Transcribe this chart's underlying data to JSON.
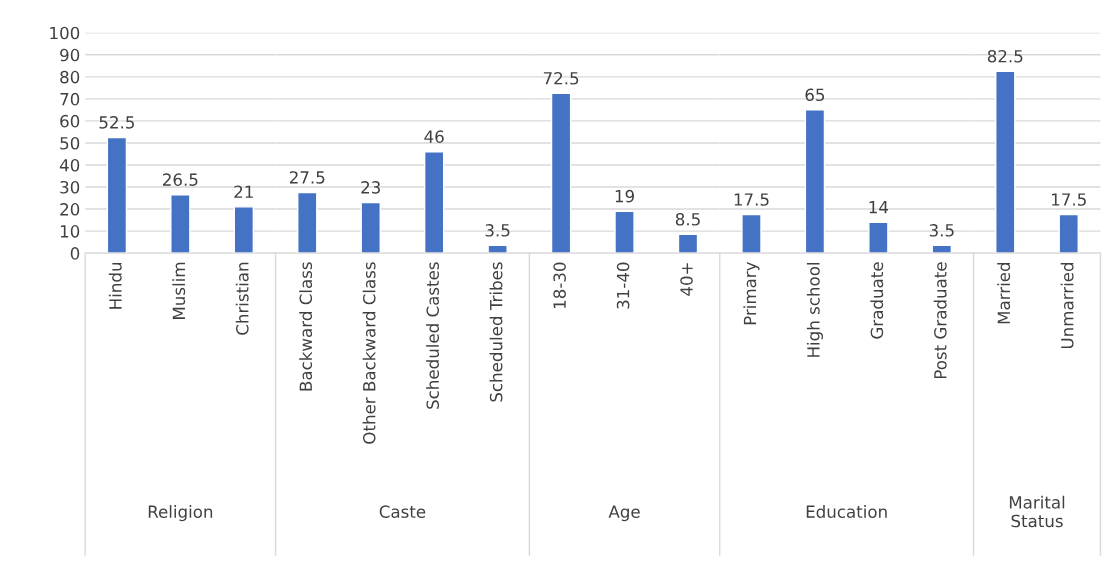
{
  "chart_data": [
    {
      "type": "bar",
      "xlabel": "Religion",
      "categories": [
        "Hindu",
        "Muslim",
        "Christian"
      ],
      "values": [
        52.5,
        26.5,
        21
      ],
      "color": "#4472c4",
      "ylim": [
        0,
        100
      ],
      "yticks": [
        0,
        10,
        20,
        30,
        40,
        50,
        60,
        70,
        80,
        90,
        100
      ],
      "grid": "y",
      "data_labels": true
    },
    {
      "type": "bar",
      "xlabel": "Caste",
      "categories": [
        "Backward Class",
        "Other Backward Class",
        "Scheduled Castes",
        "Scheduled Tribes"
      ],
      "values": [
        27.5,
        23,
        46,
        3.5
      ],
      "color": "#4472c4",
      "ylim": [
        0,
        100
      ],
      "yticks": [
        0,
        10,
        20,
        30,
        40,
        50,
        60,
        70,
        80,
        90,
        100
      ],
      "grid": "y",
      "data_labels": true,
      "tick_labels": "x"
    },
    {
      "type": "bar",
      "xlabel": "Age",
      "categories": [
        "18-30",
        "31-40",
        "40+"
      ],
      "values": [
        72.5,
        19,
        8.5
      ],
      "color": "#4472c4",
      "ylim": [
        0,
        100
      ],
      "yticks": [
        0,
        10,
        20,
        30,
        40,
        50,
        60,
        70,
        80,
        90,
        100
      ],
      "grid": "y",
      "data_labels": true,
      "tick_labels": "x"
    },
    {
      "type": "bar",
      "xlabel": "Education",
      "categories": [
        "Primary",
        "High school",
        "Graduate",
        "Post Graduate"
      ],
      "values": [
        17.5,
        65,
        14,
        3.5
      ],
      "color": "#4472c4",
      "ylim": [
        0,
        100
      ],
      "yticks": [
        0,
        10,
        20,
        30,
        40,
        50,
        60,
        70,
        80,
        90,
        100
      ],
      "grid": "y",
      "data_labels": true,
      "tick_labels": "x"
    },
    {
      "type": "bar",
      "xlabel": "Marital\nStatus",
      "categories": [
        "Married",
        "Unmarried"
      ],
      "values": [
        82.5,
        17.5
      ],
      "color": "#4472c4",
      "ylim": [
        0,
        100
      ],
      "yticks": [
        0,
        10,
        20,
        30,
        40,
        50,
        60,
        70,
        80,
        90,
        100
      ],
      "grid": "y",
      "data_labels": true,
      "tick_labels": "x"
    }
  ]
}
